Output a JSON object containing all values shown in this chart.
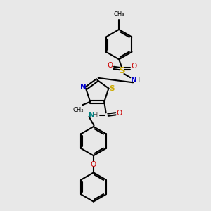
{
  "background_color": "#e8e8e8",
  "atom_colors": {
    "C": "#000000",
    "N": "#0000cc",
    "N2": "#008080",
    "O": "#cc0000",
    "S": "#ccaa00",
    "H": "#555555"
  },
  "bond_color": "#000000",
  "figsize": [
    3.0,
    3.0
  ],
  "dpi": 100
}
